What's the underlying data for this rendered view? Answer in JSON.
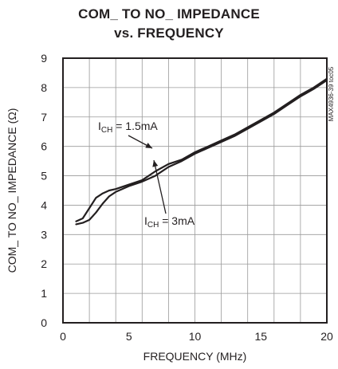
{
  "chart_data": {
    "type": "line",
    "title": "COM_ TO NO_ IMPEDANCE",
    "subtitle": "vs. FREQUENCY",
    "xlabel": "FREQUENCY (MHz)",
    "ylabel": "COM_ TO NO_ IMPEDANCE (Ω)",
    "xlim": [
      0,
      20
    ],
    "ylim": [
      0,
      9
    ],
    "x_ticks": [
      0,
      5,
      10,
      15,
      20
    ],
    "y_ticks": [
      0,
      1,
      2,
      3,
      4,
      5,
      6,
      7,
      8,
      9
    ],
    "grid": true,
    "side_code": "MAX4936-39 toc05",
    "series": [
      {
        "name": "1.5mA",
        "x": [
          1,
          1.5,
          2,
          2.5,
          3,
          3.5,
          4,
          5,
          6,
          7,
          8,
          9,
          10,
          11,
          12,
          13,
          14,
          15,
          16,
          17,
          18,
          19,
          20
        ],
        "values": [
          3.45,
          3.55,
          3.9,
          4.25,
          4.4,
          4.5,
          4.55,
          4.7,
          4.85,
          5.15,
          5.4,
          5.55,
          5.8,
          6.0,
          6.2,
          6.4,
          6.65,
          6.9,
          7.15,
          7.45,
          7.75,
          8.0,
          8.3
        ]
      },
      {
        "name": "3mA",
        "x": [
          1,
          1.5,
          2,
          2.5,
          3,
          3.5,
          4,
          5,
          6,
          7,
          8,
          9,
          10,
          11,
          12,
          13,
          14,
          15,
          16,
          17,
          18,
          19,
          20
        ],
        "values": [
          3.35,
          3.4,
          3.5,
          3.75,
          4.05,
          4.3,
          4.45,
          4.65,
          4.8,
          5.0,
          5.3,
          5.5,
          5.75,
          5.95,
          6.15,
          6.35,
          6.6,
          6.85,
          7.1,
          7.4,
          7.7,
          7.95,
          8.25
        ]
      }
    ],
    "annotations": [
      {
        "main": "I",
        "sub": "CH",
        "rest": " = 1.5mA",
        "series": "1.5mA"
      },
      {
        "main": "I",
        "sub": "CH",
        "rest": " = 3mA",
        "series": "3mA"
      }
    ]
  }
}
